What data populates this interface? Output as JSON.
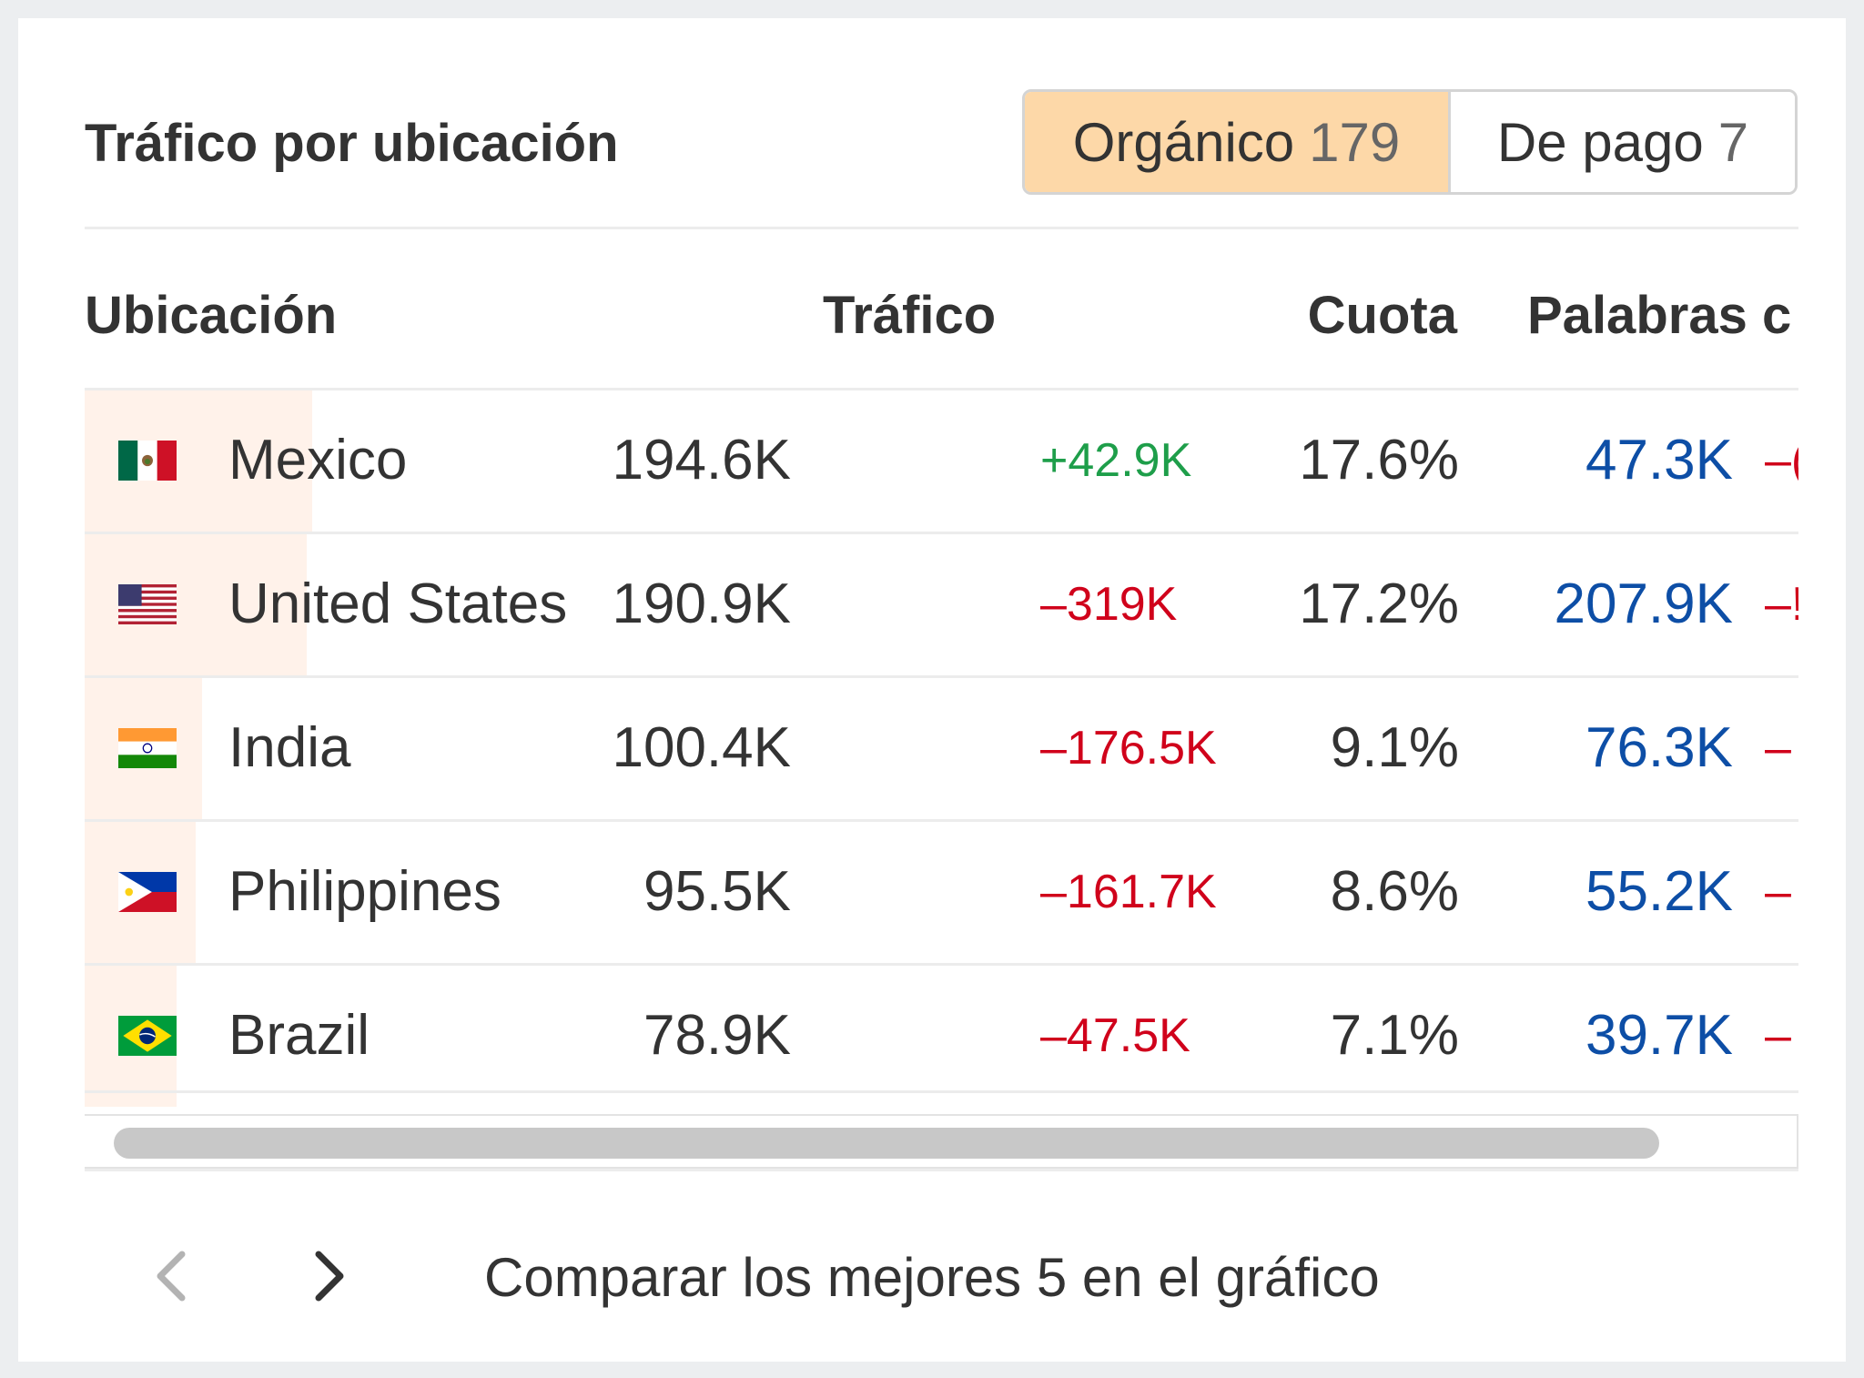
{
  "panel": {
    "title": "Tráfico por ubicación",
    "toggle": {
      "organic": {
        "label": "Orgánico",
        "count": "179",
        "active": true
      },
      "paid": {
        "label": "De pago",
        "count": "7",
        "active": false
      }
    }
  },
  "table": {
    "columns": [
      "Ubicación",
      "Tráfico",
      "Cuota",
      "Palabras c"
    ],
    "rows": [
      {
        "flag_icon": "mexico-flag-icon",
        "location": "Mexico",
        "traffic": "194.6K",
        "traffic_change": "+42.9K",
        "change_trend": "up",
        "share": "17.6%",
        "share_fraction": 0.176,
        "keywords": "47.3K",
        "keywords_change": "–("
      },
      {
        "flag_icon": "united-states-flag-icon",
        "location": "United States",
        "traffic": "190.9K",
        "traffic_change": "–319K",
        "change_trend": "down",
        "share": "17.2%",
        "share_fraction": 0.172,
        "keywords": "207.9K",
        "keywords_change": "–!"
      },
      {
        "flag_icon": "india-flag-icon",
        "location": "India",
        "traffic": "100.4K",
        "traffic_change": "–176.5K",
        "change_trend": "down",
        "share": "9.1%",
        "share_fraction": 0.091,
        "keywords": "76.3K",
        "keywords_change": "–"
      },
      {
        "flag_icon": "philippines-flag-icon",
        "location": "Philippines",
        "traffic": "95.5K",
        "traffic_change": "–161.7K",
        "change_trend": "down",
        "share": "8.6%",
        "share_fraction": 0.086,
        "keywords": "55.2K",
        "keywords_change": "–"
      },
      {
        "flag_icon": "brazil-flag-icon",
        "location": "Brazil",
        "traffic": "78.9K",
        "traffic_change": "–47.5K",
        "change_trend": "down",
        "share": "7.1%",
        "share_fraction": 0.071,
        "keywords": "39.7K",
        "keywords_change": "–"
      }
    ]
  },
  "footer": {
    "prev_icon": "chevron-left-icon",
    "next_icon": "chevron-right-icon",
    "compare_label": "Comparar los mejores 5 en el gráfico"
  },
  "colors": {
    "active_toggle": "#fdd8a8",
    "share_bar": "#fff2ea",
    "positive": "#1e9e4a",
    "negative": "#d0021b",
    "keyword_link": "#0d4ea6"
  }
}
